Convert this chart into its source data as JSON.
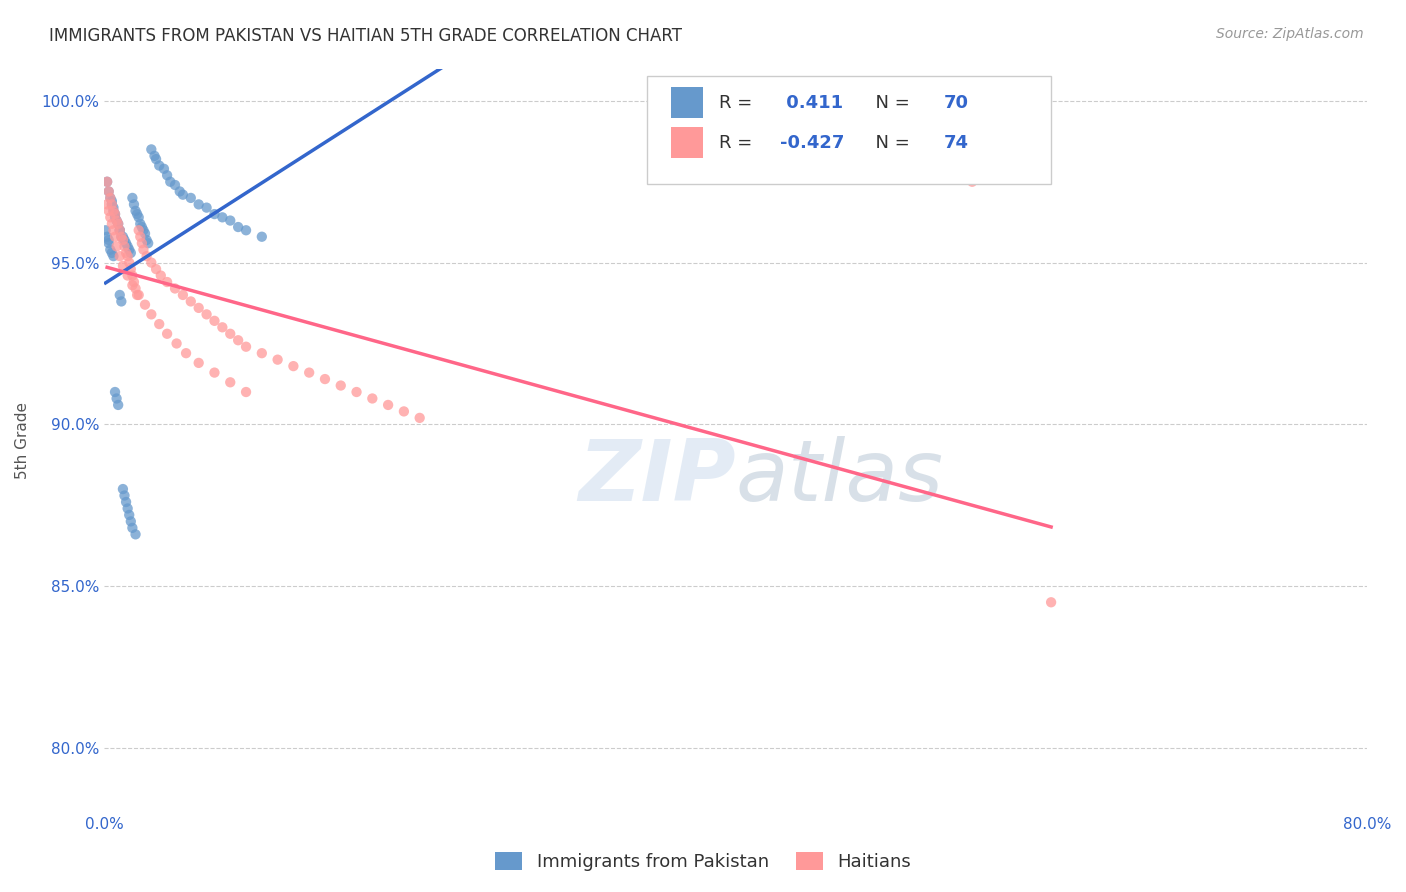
{
  "title": "IMMIGRANTS FROM PAKISTAN VS HAITIAN 5TH GRADE CORRELATION CHART",
  "source": "Source: ZipAtlas.com",
  "ylabel": "5th Grade",
  "xlim": [
    0.0,
    0.8
  ],
  "ylim": [
    0.78,
    1.01
  ],
  "xticks": [
    0.0,
    0.1,
    0.2,
    0.3,
    0.4,
    0.5,
    0.6,
    0.7,
    0.8
  ],
  "xticklabels": [
    "0.0%",
    "",
    "",
    "",
    "",
    "",
    "",
    "",
    "80.0%"
  ],
  "yticks": [
    0.8,
    0.85,
    0.9,
    0.95,
    1.0
  ],
  "yticklabels": [
    "80.0%",
    "85.0%",
    "90.0%",
    "95.0%",
    "100.0%"
  ],
  "pakistan_color": "#6699CC",
  "haitian_color": "#FF9999",
  "trend_pakistan_color": "#3366CC",
  "trend_haitian_color": "#FF6688",
  "pakistan_R": 0.411,
  "pakistan_N": 70,
  "haitian_R": -0.427,
  "haitian_N": 74,
  "legend_label_pakistan": "Immigrants from Pakistan",
  "legend_label_haitian": "Haitians",
  "watermark_zip": "ZIP",
  "watermark_atlas": "atlas",
  "background_color": "#FFFFFF",
  "pakistan_x": [
    0.002,
    0.003,
    0.004,
    0.005,
    0.005,
    0.006,
    0.006,
    0.007,
    0.007,
    0.008,
    0.009,
    0.01,
    0.01,
    0.011,
    0.012,
    0.013,
    0.014,
    0.015,
    0.016,
    0.017,
    0.018,
    0.019,
    0.02,
    0.021,
    0.022,
    0.023,
    0.024,
    0.025,
    0.026,
    0.027,
    0.028,
    0.03,
    0.032,
    0.033,
    0.035,
    0.038,
    0.04,
    0.042,
    0.045,
    0.048,
    0.05,
    0.055,
    0.06,
    0.065,
    0.07,
    0.075,
    0.08,
    0.085,
    0.09,
    0.1,
    0.001,
    0.002,
    0.003,
    0.003,
    0.004,
    0.005,
    0.006,
    0.007,
    0.008,
    0.009,
    0.01,
    0.011,
    0.012,
    0.013,
    0.014,
    0.015,
    0.016,
    0.017,
    0.018,
    0.02
  ],
  "pakistan_y": [
    0.975,
    0.972,
    0.97,
    0.969,
    0.968,
    0.967,
    0.966,
    0.965,
    0.964,
    0.963,
    0.962,
    0.96,
    0.96,
    0.958,
    0.958,
    0.957,
    0.956,
    0.955,
    0.954,
    0.953,
    0.97,
    0.968,
    0.966,
    0.965,
    0.964,
    0.962,
    0.961,
    0.96,
    0.959,
    0.957,
    0.956,
    0.985,
    0.983,
    0.982,
    0.98,
    0.979,
    0.977,
    0.975,
    0.974,
    0.972,
    0.971,
    0.97,
    0.968,
    0.967,
    0.965,
    0.964,
    0.963,
    0.961,
    0.96,
    0.958,
    0.96,
    0.958,
    0.957,
    0.956,
    0.954,
    0.953,
    0.952,
    0.91,
    0.908,
    0.906,
    0.94,
    0.938,
    0.88,
    0.878,
    0.876,
    0.874,
    0.872,
    0.87,
    0.868,
    0.866
  ],
  "haitian_x": [
    0.002,
    0.003,
    0.004,
    0.005,
    0.006,
    0.007,
    0.008,
    0.009,
    0.01,
    0.011,
    0.012,
    0.013,
    0.014,
    0.015,
    0.016,
    0.017,
    0.018,
    0.019,
    0.02,
    0.021,
    0.022,
    0.023,
    0.024,
    0.025,
    0.027,
    0.03,
    0.033,
    0.036,
    0.04,
    0.045,
    0.05,
    0.055,
    0.06,
    0.065,
    0.07,
    0.075,
    0.08,
    0.085,
    0.09,
    0.1,
    0.11,
    0.12,
    0.13,
    0.14,
    0.15,
    0.16,
    0.17,
    0.18,
    0.19,
    0.2,
    0.002,
    0.003,
    0.004,
    0.005,
    0.006,
    0.007,
    0.008,
    0.01,
    0.012,
    0.015,
    0.018,
    0.022,
    0.026,
    0.03,
    0.035,
    0.04,
    0.046,
    0.052,
    0.06,
    0.07,
    0.08,
    0.09,
    0.55,
    0.6
  ],
  "haitian_y": [
    0.975,
    0.972,
    0.97,
    0.968,
    0.966,
    0.965,
    0.963,
    0.962,
    0.96,
    0.958,
    0.957,
    0.955,
    0.953,
    0.952,
    0.95,
    0.948,
    0.946,
    0.944,
    0.942,
    0.94,
    0.96,
    0.958,
    0.956,
    0.954,
    0.952,
    0.95,
    0.948,
    0.946,
    0.944,
    0.942,
    0.94,
    0.938,
    0.936,
    0.934,
    0.932,
    0.93,
    0.928,
    0.926,
    0.924,
    0.922,
    0.92,
    0.918,
    0.916,
    0.914,
    0.912,
    0.91,
    0.908,
    0.906,
    0.904,
    0.902,
    0.968,
    0.966,
    0.964,
    0.962,
    0.96,
    0.958,
    0.955,
    0.952,
    0.949,
    0.946,
    0.943,
    0.94,
    0.937,
    0.934,
    0.931,
    0.928,
    0.925,
    0.922,
    0.919,
    0.916,
    0.913,
    0.91,
    0.975,
    0.845
  ]
}
